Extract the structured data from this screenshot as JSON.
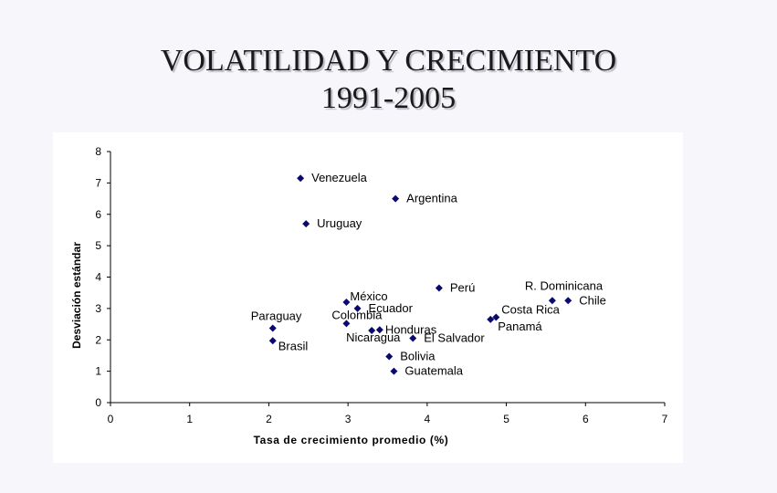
{
  "slide": {
    "title_line1": "VOLATILIDAD Y CRECIMIENTO",
    "title_line2": "1991-2005"
  },
  "colors": {
    "marker": "#0a0a6e",
    "axis": "#000000",
    "background": "#f7f7fb",
    "plot_background": "#ffffff"
  },
  "chart_data": {
    "type": "scatter",
    "title": "",
    "xlabel": "Tasa de crecimiento promedio (%)",
    "ylabel": "Desviación estándar",
    "xlim": [
      0,
      7
    ],
    "ylim": [
      0,
      8
    ],
    "xticks": [
      0,
      1,
      2,
      3,
      4,
      5,
      6,
      7
    ],
    "yticks": [
      0,
      1,
      2,
      3,
      4,
      5,
      6,
      7,
      8
    ],
    "grid": false,
    "legend": "none",
    "points": [
      {
        "label": "Venezuela",
        "x": 2.4,
        "y": 7.15
      },
      {
        "label": "Argentina",
        "x": 3.6,
        "y": 6.5
      },
      {
        "label": "Uruguay",
        "x": 2.47,
        "y": 5.7
      },
      {
        "label": "Perú",
        "x": 4.15,
        "y": 3.65
      },
      {
        "label": "R. Dominicana",
        "x": 5.58,
        "y": 3.25
      },
      {
        "label": "Chile",
        "x": 5.78,
        "y": 3.25
      },
      {
        "label": "México",
        "x": 2.98,
        "y": 3.2
      },
      {
        "label": "Ecuador",
        "x": 3.12,
        "y": 3.0
      },
      {
        "label": "Costa Rica",
        "x": 4.87,
        "y": 2.72
      },
      {
        "label": "Panamá",
        "x": 4.8,
        "y": 2.65
      },
      {
        "label": "Colombia",
        "x": 2.98,
        "y": 2.52
      },
      {
        "label": "Paraguay",
        "x": 2.05,
        "y": 2.37
      },
      {
        "label": "Honduras",
        "x": 3.4,
        "y": 2.32
      },
      {
        "label": "Nicaragua",
        "x": 3.3,
        "y": 2.3
      },
      {
        "label": "El Salvador",
        "x": 3.82,
        "y": 2.05
      },
      {
        "label": "Brasil",
        "x": 2.05,
        "y": 1.97
      },
      {
        "label": "Bolivia",
        "x": 3.52,
        "y": 1.47
      },
      {
        "label": "Guatemala",
        "x": 3.58,
        "y": 1.0
      }
    ]
  }
}
